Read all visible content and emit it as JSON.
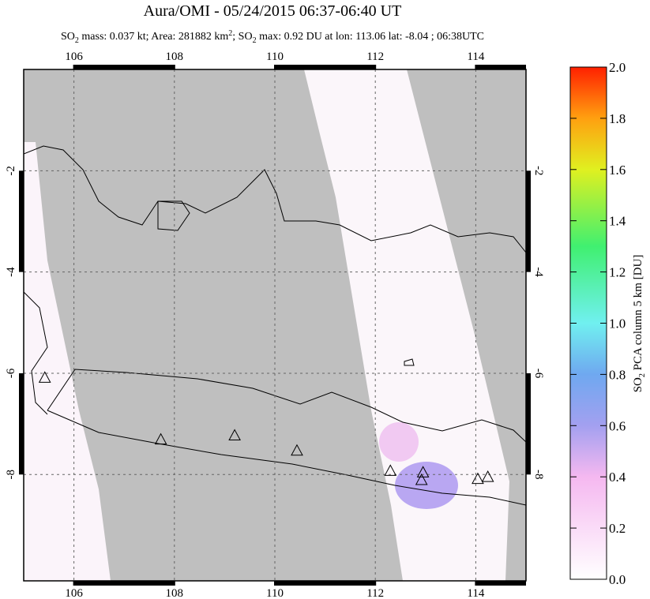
{
  "title": "Aura/OMI - 05/24/2015 06:37-06:40 UT",
  "subtitle": [
    "SO",
    "2",
    " mass: 0.037 kt; Area: 281882 km",
    "2",
    "; SO",
    "2",
    " max: 0.92 DU at lon: 113.06 lat: -8.04 ; 06:38UTC"
  ],
  "map": {
    "xlim": [
      105,
      115
    ],
    "ylim": [
      -10.1,
      0
    ],
    "xticks": [
      106,
      108,
      110,
      112,
      114
    ],
    "yticks": [
      -2,
      -4,
      -6,
      -8
    ],
    "grid": true,
    "volcanoes": [
      {
        "lon": 105.42,
        "lat": -6.1
      },
      {
        "lon": 107.73,
        "lat": -7.32
      },
      {
        "lon": 109.2,
        "lat": -7.24
      },
      {
        "lon": 110.44,
        "lat": -7.54
      },
      {
        "lon": 112.3,
        "lat": -7.94
      },
      {
        "lon": 112.95,
        "lat": -7.97
      },
      {
        "lon": 112.92,
        "lat": -8.12
      },
      {
        "lon": 114.04,
        "lat": -8.1
      },
      {
        "lon": 114.24,
        "lat": -8.06
      }
    ]
  },
  "colorbar": {
    "label": [
      "SO",
      "2",
      " PCA column 5 km [DU]"
    ],
    "lim": [
      0,
      2
    ],
    "ticks": [
      {
        "value": 0,
        "label": "0.0"
      },
      {
        "value": 0.2,
        "label": "0.2"
      },
      {
        "value": 0.4,
        "label": "0.4"
      },
      {
        "value": 0.6,
        "label": "0.6"
      },
      {
        "value": 0.8,
        "label": "0.8"
      },
      {
        "value": 1,
        "label": "1.0"
      },
      {
        "value": 1.2,
        "label": "1.2"
      },
      {
        "value": 1.4,
        "label": "1.4"
      },
      {
        "value": 1.6,
        "label": "1.6"
      },
      {
        "value": 1.8,
        "label": "1.8"
      },
      {
        "value": 2,
        "label": "2.0"
      }
    ]
  }
}
